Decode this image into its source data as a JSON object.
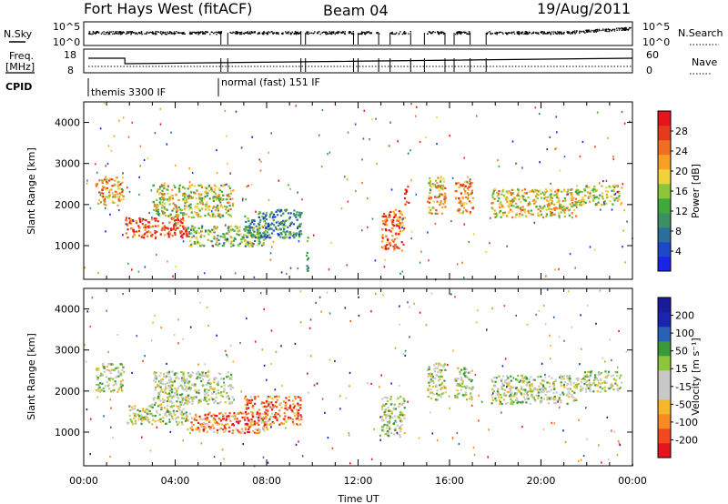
{
  "header": {
    "title": "Fort Hays West (fitACF)",
    "beam": "Beam 04",
    "date": "19/Aug/2011"
  },
  "strips": {
    "noise_left_label": "N.Sky",
    "noise_left_ticks": [
      "10^5",
      "10^0"
    ],
    "noise_right_label": "N.Search",
    "noise_right_ticks": [
      "10^5",
      "10^0"
    ],
    "freq_label_line1": "Freq.",
    "freq_label_line2": "[MHz]",
    "freq_ticks": [
      "18",
      "8"
    ],
    "nave_label": "Nave",
    "nave_ticks": [
      "60",
      "0"
    ],
    "cpid_label": "CPID",
    "cpid_modes": [
      {
        "label": "themis 3300 IF",
        "start_hour": 0.0
      },
      {
        "label": "normal (fast) 151 IF",
        "start_hour": 6.0
      }
    ]
  },
  "chart_data": [
    {
      "type": "heatmap",
      "name": "power",
      "ylabel": "Slant Range [km]",
      "xlabel": "",
      "xlim": [
        0,
        24
      ],
      "ylim": [
        180,
        4500
      ],
      "yticks": [
        1000,
        2000,
        3000,
        4000
      ],
      "colorbar": {
        "label": "Power [dB]",
        "ticks": [
          "4",
          "8",
          "12",
          "16",
          "20",
          "24",
          "28"
        ],
        "colors": [
          "#1a24e6",
          "#1f47c9",
          "#2b6e9c",
          "#3a8f63",
          "#3fa93a",
          "#8cc63a",
          "#f2d23a",
          "#f7a023",
          "#f26f22",
          "#e63a1f",
          "#e6141c"
        ]
      },
      "regions": [
        {
          "t0": 0.5,
          "t1": 1.7,
          "r0": 2000,
          "r1": 2700,
          "level": 0.65
        },
        {
          "t0": 1.8,
          "t1": 4.5,
          "r0": 1200,
          "r1": 1700,
          "level": 0.85
        },
        {
          "t0": 3.0,
          "t1": 6.5,
          "r0": 1700,
          "r1": 2500,
          "level": 0.55
        },
        {
          "t0": 4.5,
          "t1": 8.0,
          "r0": 1000,
          "r1": 1500,
          "level": 0.45
        },
        {
          "t0": 7.0,
          "t1": 9.5,
          "r0": 1200,
          "r1": 1900,
          "level": 0.3
        },
        {
          "t0": 9.7,
          "t1": 9.8,
          "r0": 400,
          "r1": 1300,
          "level": 0.3
        },
        {
          "t0": 13.0,
          "t1": 14.0,
          "r0": 900,
          "r1": 1900,
          "level": 0.8
        },
        {
          "t0": 14.0,
          "t1": 14.2,
          "r0": 2000,
          "r1": 2500,
          "level": 0.9
        },
        {
          "t0": 15.0,
          "t1": 15.8,
          "r0": 1800,
          "r1": 2700,
          "level": 0.65
        },
        {
          "t0": 16.2,
          "t1": 17.0,
          "r0": 1800,
          "r1": 2600,
          "level": 0.7
        },
        {
          "t0": 17.8,
          "t1": 21.5,
          "r0": 1700,
          "r1": 2400,
          "level": 0.6
        },
        {
          "t0": 21.5,
          "t1": 23.5,
          "r0": 2000,
          "r1": 2500,
          "level": 0.5
        }
      ]
    },
    {
      "type": "heatmap",
      "name": "velocity",
      "ylabel": "Slant Range [km]",
      "xlabel": "Time UT",
      "xlim": [
        0,
        24
      ],
      "ylim": [
        180,
        4500
      ],
      "yticks": [
        1000,
        2000,
        3000,
        4000
      ],
      "xticks": [
        "00:00",
        "04:00",
        "08:00",
        "12:00",
        "16:00",
        "20:00",
        "00:00"
      ],
      "colorbar": {
        "label": "Velocity [m s⁻¹]",
        "ticks": [
          "-200",
          "-100",
          "-50",
          "-15",
          "15",
          "50",
          "100",
          "200"
        ],
        "colors": [
          "#e6141c",
          "#f24a1f",
          "#f78a22",
          "#f5b82a",
          "#c8c8c8",
          "#c8c8c8",
          "#8cc63a",
          "#3a9a3a",
          "#2b5fb8",
          "#1a24b0",
          "#1a1a9a"
        ]
      },
      "regions": [
        {
          "t0": 0.5,
          "t1": 1.7,
          "r0": 2000,
          "r1": 2700,
          "level": 0.5
        },
        {
          "t0": 1.8,
          "t1": 4.5,
          "r0": 1200,
          "r1": 1700,
          "level": 0.5
        },
        {
          "t0": 3.0,
          "t1": 6.5,
          "r0": 1700,
          "r1": 2500,
          "level": 0.5
        },
        {
          "t0": 4.5,
          "t1": 8.0,
          "r0": 1000,
          "r1": 1500,
          "level": 0.2
        },
        {
          "t0": 7.0,
          "t1": 9.5,
          "r0": 1200,
          "r1": 1900,
          "level": 0.2
        },
        {
          "t0": 13.0,
          "t1": 14.0,
          "r0": 900,
          "r1": 1900,
          "level": 0.5
        },
        {
          "t0": 15.0,
          "t1": 15.8,
          "r0": 1800,
          "r1": 2700,
          "level": 0.5
        },
        {
          "t0": 16.2,
          "t1": 17.0,
          "r0": 1800,
          "r1": 2600,
          "level": 0.5
        },
        {
          "t0": 17.8,
          "t1": 21.5,
          "r0": 1700,
          "r1": 2400,
          "level": 0.5
        },
        {
          "t0": 21.5,
          "t1": 23.5,
          "r0": 2000,
          "r1": 2500,
          "level": 0.5
        }
      ]
    }
  ]
}
